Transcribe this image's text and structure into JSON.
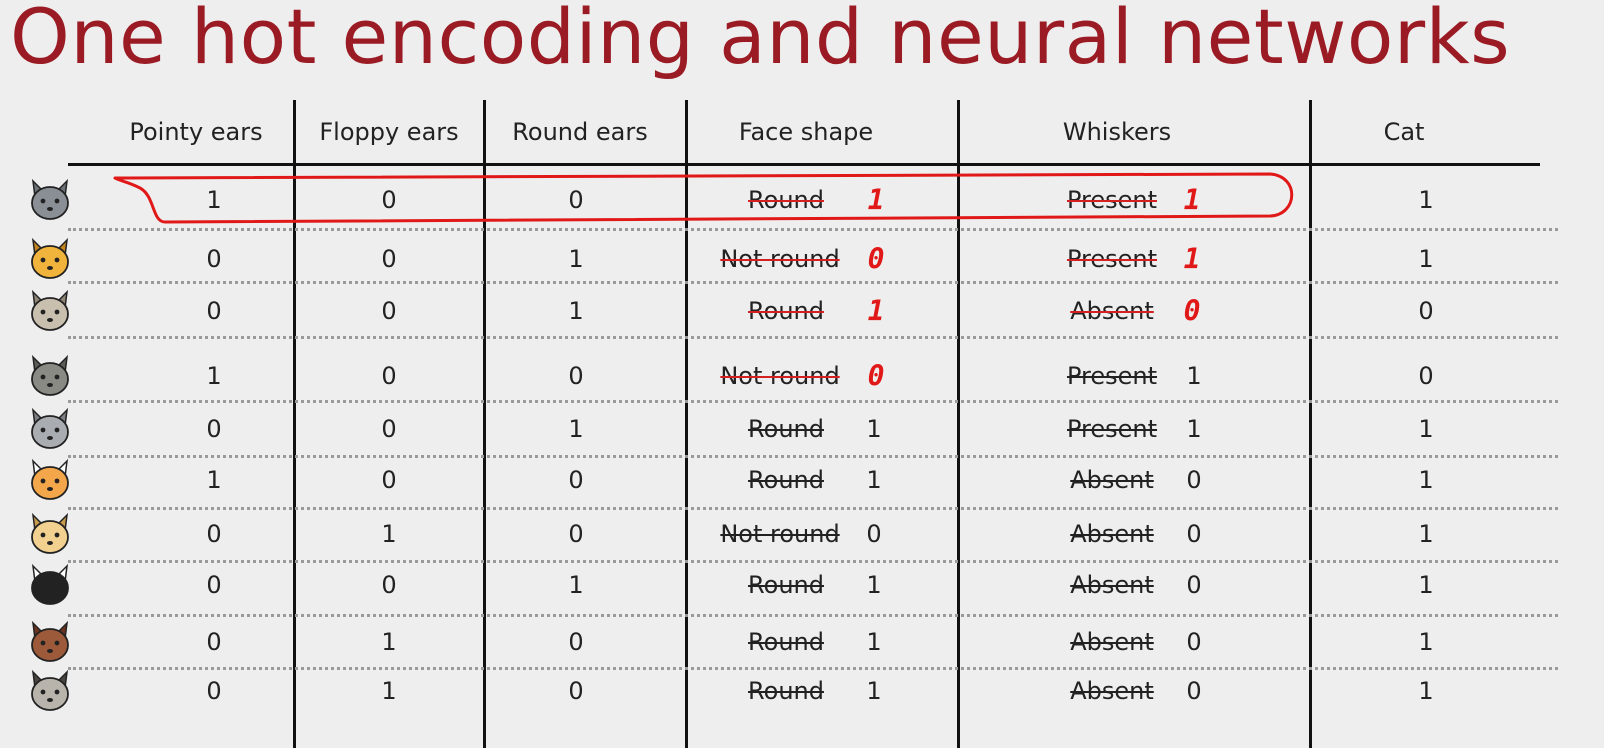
{
  "title": "One hot encoding and neural networks",
  "headers": [
    "Pointy ears",
    "Floppy ears",
    "Round ears",
    "Face shape",
    "Whiskers",
    "Cat"
  ],
  "rows": [
    {
      "animal": "gray-cat-icon",
      "pointy": "1",
      "floppy": "0",
      "round": "0",
      "face": "Round",
      "face_val": "1",
      "face_hand": true,
      "whisk": "Present",
      "whisk_val": "1",
      "whisk_hand": true,
      "cat": "1"
    },
    {
      "animal": "orange-cat-icon",
      "pointy": "0",
      "floppy": "0",
      "round": "1",
      "face": "Not round",
      "face_val": "0",
      "face_hand": true,
      "whisk": "Present",
      "whisk_val": "1",
      "whisk_hand": true,
      "cat": "1"
    },
    {
      "animal": "beige-bear-dog-icon",
      "pointy": "0",
      "floppy": "0",
      "round": "1",
      "face": "Round",
      "face_val": "1",
      "face_hand": true,
      "whisk": "Absent",
      "whisk_val": "0",
      "whisk_hand": true,
      "cat": "0"
    },
    {
      "animal": "gray-wolf-icon",
      "pointy": "1",
      "floppy": "0",
      "round": "0",
      "face": "Not round",
      "face_val": "0",
      "face_hand": true,
      "whisk": "Present",
      "whisk_val": "1",
      "whisk_hand": false,
      "cat": "0"
    },
    {
      "animal": "gray-tabby-cat-icon",
      "pointy": "0",
      "floppy": "0",
      "round": "1",
      "face": "Round",
      "face_val": "1",
      "face_hand": false,
      "whisk": "Present",
      "whisk_val": "1",
      "whisk_hand": false,
      "cat": "1"
    },
    {
      "animal": "orange-white-cat-icon",
      "pointy": "1",
      "floppy": "0",
      "round": "0",
      "face": "Round",
      "face_val": "1",
      "face_hand": false,
      "whisk": "Absent",
      "whisk_val": "0",
      "whisk_hand": false,
      "cat": "1"
    },
    {
      "animal": "tan-dog-icon",
      "pointy": "0",
      "floppy": "1",
      "round": "0",
      "face": "Not round",
      "face_val": "0",
      "face_hand": false,
      "whisk": "Absent",
      "whisk_val": "0",
      "whisk_hand": false,
      "cat": "1"
    },
    {
      "animal": "black-white-cat-icon",
      "pointy": "0",
      "floppy": "0",
      "round": "1",
      "face": "Round",
      "face_val": "1",
      "face_hand": false,
      "whisk": "Absent",
      "whisk_val": "0",
      "whisk_hand": false,
      "cat": "1"
    },
    {
      "animal": "brown-dog-icon",
      "pointy": "0",
      "floppy": "1",
      "round": "0",
      "face": "Round",
      "face_val": "1",
      "face_hand": false,
      "whisk": "Absent",
      "whisk_val": "0",
      "whisk_hand": false,
      "cat": "1"
    },
    {
      "animal": "gray-pug-dog-icon",
      "pointy": "0",
      "floppy": "1",
      "round": "0",
      "face": "Round",
      "face_val": "1",
      "face_hand": false,
      "whisk": "Absent",
      "whisk_val": "0",
      "whisk_hand": false,
      "cat": "1"
    }
  ],
  "colors": {
    "title": "#9b1b24",
    "annotation": "#e01818",
    "background": "#efeeee"
  }
}
